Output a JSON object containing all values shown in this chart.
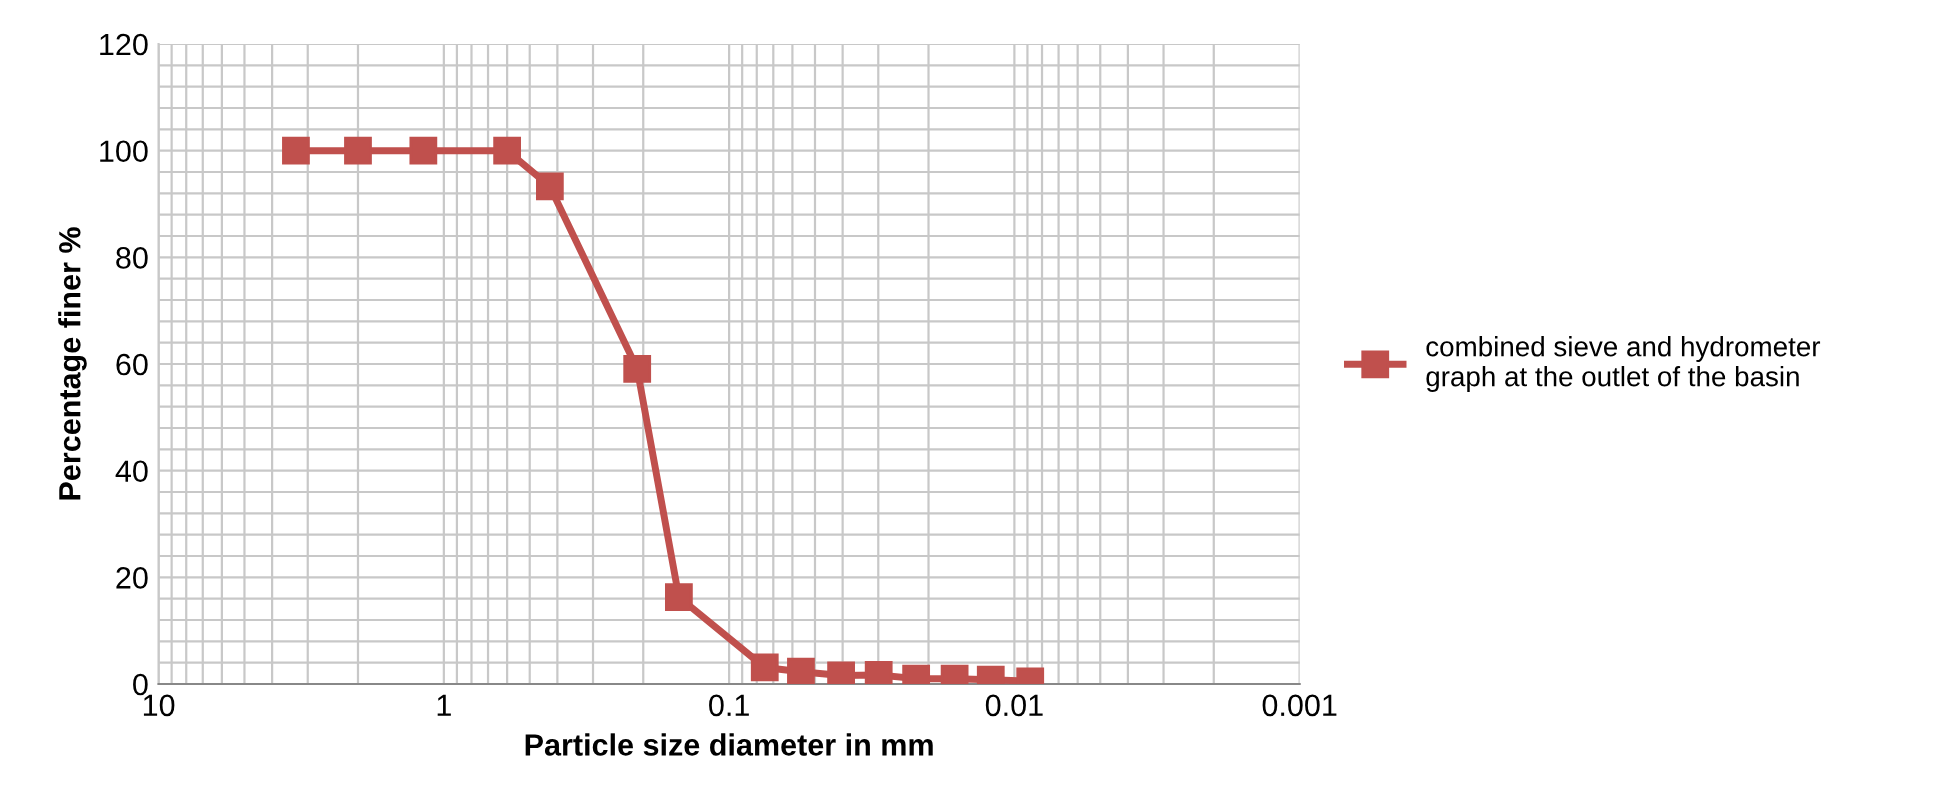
{
  "chart_data": {
    "type": "line",
    "xlabel": "Particle size diameter in mm",
    "ylabel": "Percentage finer %",
    "log": "x",
    "xlim": [
      10,
      0.001
    ],
    "xticks": [
      10,
      1,
      0.1,
      0.01,
      0.001
    ],
    "ylim": [
      0,
      120
    ],
    "yticks": [
      0,
      20,
      40,
      60,
      80,
      100,
      120
    ],
    "grid": true,
    "legend": "right",
    "marker": "square",
    "line_style": "solid",
    "series": [
      {
        "name": "combined sieve and hydrometer graph at the outlet of the basin",
        "color": "#c0504d",
        "x": [
          3.3,
          2,
          1.18,
          0.6,
          0.425,
          0.21,
          0.15,
          0.075,
          0.056,
          0.0405,
          0.0299,
          0.0221,
          0.0162,
          0.0121,
          0.0088
        ],
        "values": [
          100,
          100,
          100,
          100,
          93.3,
          59.1,
          16.3,
          3.1,
          2.3,
          1.6,
          1.7,
          1.0,
          1.0,
          0.8,
          0.5
        ]
      }
    ]
  }
}
